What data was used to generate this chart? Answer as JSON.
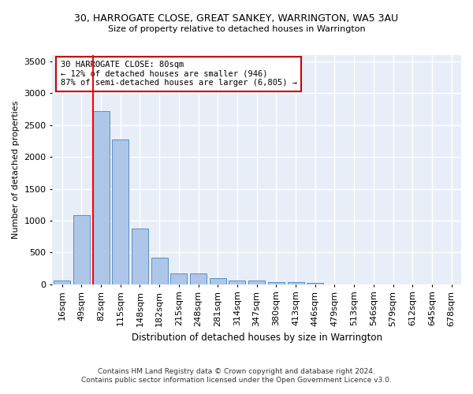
{
  "title_line1": "30, HARROGATE CLOSE, GREAT SANKEY, WARRINGTON, WA5 3AU",
  "title_line2": "Size of property relative to detached houses in Warrington",
  "xlabel": "Distribution of detached houses by size in Warrington",
  "ylabel": "Number of detached properties",
  "footnote1": "Contains HM Land Registry data © Crown copyright and database right 2024.",
  "footnote2": "Contains public sector information licensed under the Open Government Licence v3.0.",
  "categories": [
    "16sqm",
    "49sqm",
    "82sqm",
    "115sqm",
    "148sqm",
    "182sqm",
    "215sqm",
    "248sqm",
    "281sqm",
    "314sqm",
    "347sqm",
    "380sqm",
    "413sqm",
    "446sqm",
    "479sqm",
    "513sqm",
    "546sqm",
    "579sqm",
    "612sqm",
    "645sqm",
    "678sqm"
  ],
  "values": [
    55,
    1090,
    2720,
    2280,
    880,
    415,
    170,
    170,
    95,
    60,
    55,
    35,
    30,
    25,
    0,
    0,
    0,
    0,
    0,
    0,
    0
  ],
  "bar_color": "#aec6e8",
  "bar_edge_color": "#5b8ec4",
  "background_color": "#e8eef8",
  "grid_color": "#ffffff",
  "marker_line_color": "#ff0000",
  "annotation_line1": "30 HARROGATE CLOSE: 80sqm",
  "annotation_line2": "← 12% of detached houses are smaller (946)",
  "annotation_line3": "87% of semi-detached houses are larger (6,805) →",
  "annotation_box_color": "#ffffff",
  "annotation_box_edge_color": "#cc0000",
  "ylim": [
    0,
    3600
  ],
  "yticks": [
    0,
    500,
    1000,
    1500,
    2000,
    2500,
    3000,
    3500
  ]
}
